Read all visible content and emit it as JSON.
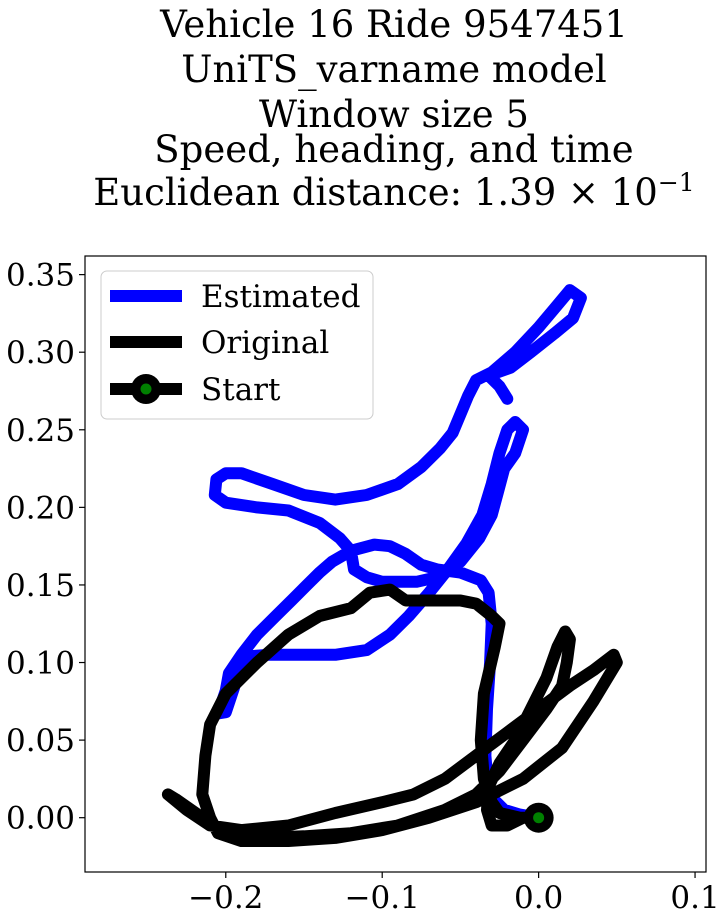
{
  "chart_data": {
    "type": "line",
    "title_lines": [
      "Vehicle 16 Ride 9547451",
      "UniTS_varname model",
      "Window size 5",
      "Speed, heading, and time",
      "Euclidean distance: 1.39 × 10⁻¹"
    ],
    "title_parts": {
      "distance_prefix": "Euclidean distance: 1.39 × 10",
      "distance_exponent": "−1"
    },
    "xlabel": "",
    "ylabel": "",
    "xlim": [
      -0.29,
      0.107
    ],
    "ylim": [
      -0.035,
      0.362
    ],
    "x_ticks": [
      -0.2,
      -0.1,
      0.0,
      0.1
    ],
    "x_tick_labels": [
      "−0.2",
      "−0.1",
      "0.0",
      "0.1"
    ],
    "y_ticks": [
      0.0,
      0.05,
      0.1,
      0.15,
      0.2,
      0.25,
      0.3,
      0.35
    ],
    "y_tick_labels": [
      "0.00",
      "0.05",
      "0.10",
      "0.15",
      "0.20",
      "0.25",
      "0.30",
      "0.35"
    ],
    "grid": false,
    "legend_position": "top-left",
    "legend": [
      "Estimated",
      "Original",
      "Start"
    ],
    "series": [
      {
        "name": "Estimated",
        "color": "#0000ff",
        "points": [
          [
            0.0,
            0.0
          ],
          [
            -0.012,
            0.002
          ],
          [
            -0.022,
            0.005
          ],
          [
            -0.032,
            0.015
          ],
          [
            -0.034,
            0.04
          ],
          [
            -0.033,
            0.07
          ],
          [
            -0.031,
            0.1
          ],
          [
            -0.03,
            0.125
          ],
          [
            -0.032,
            0.145
          ],
          [
            -0.037,
            0.153
          ],
          [
            -0.05,
            0.158
          ],
          [
            -0.065,
            0.16
          ],
          [
            -0.075,
            0.163
          ],
          [
            -0.085,
            0.17
          ],
          [
            -0.095,
            0.175
          ],
          [
            -0.105,
            0.176
          ],
          [
            -0.12,
            0.172
          ],
          [
            -0.132,
            0.165
          ],
          [
            -0.14,
            0.158
          ],
          [
            -0.148,
            0.15
          ],
          [
            -0.158,
            0.14
          ],
          [
            -0.168,
            0.13
          ],
          [
            -0.18,
            0.118
          ],
          [
            -0.19,
            0.105
          ],
          [
            -0.198,
            0.093
          ],
          [
            -0.2,
            0.082
          ],
          [
            -0.203,
            0.073
          ],
          [
            -0.206,
            0.067
          ],
          [
            -0.2,
            0.068
          ],
          [
            -0.195,
            0.083
          ],
          [
            -0.19,
            0.1
          ],
          [
            -0.185,
            0.104
          ],
          [
            -0.173,
            0.105
          ],
          [
            -0.155,
            0.105
          ],
          [
            -0.13,
            0.105
          ],
          [
            -0.11,
            0.108
          ],
          [
            -0.095,
            0.118
          ],
          [
            -0.083,
            0.13
          ],
          [
            -0.07,
            0.145
          ],
          [
            -0.058,
            0.16
          ],
          [
            -0.046,
            0.177
          ],
          [
            -0.036,
            0.195
          ],
          [
            -0.03,
            0.215
          ],
          [
            -0.025,
            0.235
          ],
          [
            -0.02,
            0.25
          ],
          [
            -0.015,
            0.255
          ],
          [
            -0.01,
            0.25
          ],
          [
            -0.015,
            0.235
          ],
          [
            -0.022,
            0.225
          ],
          [
            -0.026,
            0.21
          ],
          [
            -0.03,
            0.195
          ],
          [
            -0.038,
            0.18
          ],
          [
            -0.05,
            0.165
          ],
          [
            -0.065,
            0.155
          ],
          [
            -0.078,
            0.152
          ],
          [
            -0.09,
            0.152
          ],
          [
            -0.1,
            0.152
          ],
          [
            -0.11,
            0.155
          ],
          [
            -0.118,
            0.16
          ],
          [
            -0.12,
            0.172
          ],
          [
            -0.127,
            0.18
          ],
          [
            -0.14,
            0.19
          ],
          [
            -0.16,
            0.198
          ],
          [
            -0.18,
            0.2
          ],
          [
            -0.2,
            0.203
          ],
          [
            -0.207,
            0.208
          ],
          [
            -0.206,
            0.218
          ],
          [
            -0.2,
            0.222
          ],
          [
            -0.19,
            0.222
          ],
          [
            -0.17,
            0.215
          ],
          [
            -0.15,
            0.208
          ],
          [
            -0.13,
            0.205
          ],
          [
            -0.11,
            0.208
          ],
          [
            -0.09,
            0.215
          ],
          [
            -0.075,
            0.226
          ],
          [
            -0.063,
            0.238
          ],
          [
            -0.055,
            0.248
          ],
          [
            -0.05,
            0.26
          ],
          [
            -0.045,
            0.272
          ],
          [
            -0.04,
            0.282
          ],
          [
            -0.03,
            0.287
          ],
          [
            -0.015,
            0.3
          ],
          [
            0.0,
            0.316
          ],
          [
            0.01,
            0.328
          ],
          [
            0.02,
            0.34
          ],
          [
            0.027,
            0.335
          ],
          [
            0.022,
            0.322
          ],
          [
            0.01,
            0.312
          ],
          [
            -0.005,
            0.3
          ],
          [
            -0.018,
            0.29
          ],
          [
            -0.032,
            0.285
          ],
          [
            -0.025,
            0.278
          ],
          [
            -0.02,
            0.27
          ]
        ]
      },
      {
        "name": "Original",
        "color": "#000000",
        "points": [
          [
            0.0,
            0.0
          ],
          [
            -0.012,
            0.0
          ],
          [
            -0.025,
            0.003
          ],
          [
            -0.03,
            0.01
          ],
          [
            -0.035,
            0.025
          ],
          [
            -0.037,
            0.05
          ],
          [
            -0.035,
            0.08
          ],
          [
            -0.028,
            0.11
          ],
          [
            -0.025,
            0.125
          ],
          [
            -0.03,
            0.13
          ],
          [
            -0.04,
            0.138
          ],
          [
            -0.05,
            0.14
          ],
          [
            -0.065,
            0.14
          ],
          [
            -0.085,
            0.14
          ],
          [
            -0.095,
            0.147
          ],
          [
            -0.108,
            0.145
          ],
          [
            -0.12,
            0.135
          ],
          [
            -0.14,
            0.13
          ],
          [
            -0.16,
            0.118
          ],
          [
            -0.18,
            0.1
          ],
          [
            -0.2,
            0.08
          ],
          [
            -0.21,
            0.06
          ],
          [
            -0.213,
            0.04
          ],
          [
            -0.215,
            0.015
          ],
          [
            -0.21,
            0.0
          ],
          [
            -0.205,
            -0.01
          ],
          [
            -0.19,
            -0.015
          ],
          [
            -0.16,
            -0.015
          ],
          [
            -0.13,
            -0.013
          ],
          [
            -0.1,
            -0.008
          ],
          [
            -0.07,
            0.0
          ],
          [
            -0.04,
            0.01
          ],
          [
            -0.01,
            0.025
          ],
          [
            0.015,
            0.045
          ],
          [
            0.035,
            0.075
          ],
          [
            0.05,
            0.1
          ],
          [
            0.048,
            0.105
          ],
          [
            0.035,
            0.095
          ],
          [
            0.02,
            0.085
          ],
          [
            0.0,
            0.07
          ],
          [
            -0.02,
            0.055
          ],
          [
            -0.04,
            0.04
          ],
          [
            -0.06,
            0.025
          ],
          [
            -0.08,
            0.015
          ],
          [
            -0.1,
            0.01
          ],
          [
            -0.13,
            0.003
          ],
          [
            -0.16,
            -0.005
          ],
          [
            -0.19,
            -0.008
          ],
          [
            -0.21,
            -0.005
          ],
          [
            -0.225,
            0.005
          ],
          [
            -0.237,
            0.015
          ],
          [
            -0.232,
            0.012
          ],
          [
            -0.215,
            0.0
          ],
          [
            -0.2,
            -0.01
          ],
          [
            -0.175,
            -0.013
          ],
          [
            -0.15,
            -0.012
          ],
          [
            -0.12,
            -0.01
          ],
          [
            -0.09,
            -0.005
          ],
          [
            -0.06,
            0.005
          ],
          [
            -0.04,
            0.015
          ],
          [
            -0.025,
            0.03
          ],
          [
            -0.01,
            0.05
          ],
          [
            0.005,
            0.07
          ],
          [
            0.015,
            0.085
          ],
          [
            0.018,
            0.1
          ],
          [
            0.02,
            0.115
          ],
          [
            0.017,
            0.12
          ],
          [
            0.012,
            0.11
          ],
          [
            0.005,
            0.09
          ],
          [
            -0.005,
            0.07
          ],
          [
            -0.015,
            0.05
          ],
          [
            -0.025,
            0.035
          ],
          [
            -0.032,
            0.02
          ],
          [
            -0.033,
            0.005
          ],
          [
            -0.03,
            -0.005
          ],
          [
            -0.02,
            -0.005
          ],
          [
            -0.01,
            0.0
          ],
          [
            0.0,
            0.0
          ]
        ]
      }
    ],
    "start_marker": {
      "name": "Start",
      "x": 0.0,
      "y": 0.0,
      "outer_color": "#000000",
      "inner_color": "#008000"
    }
  }
}
